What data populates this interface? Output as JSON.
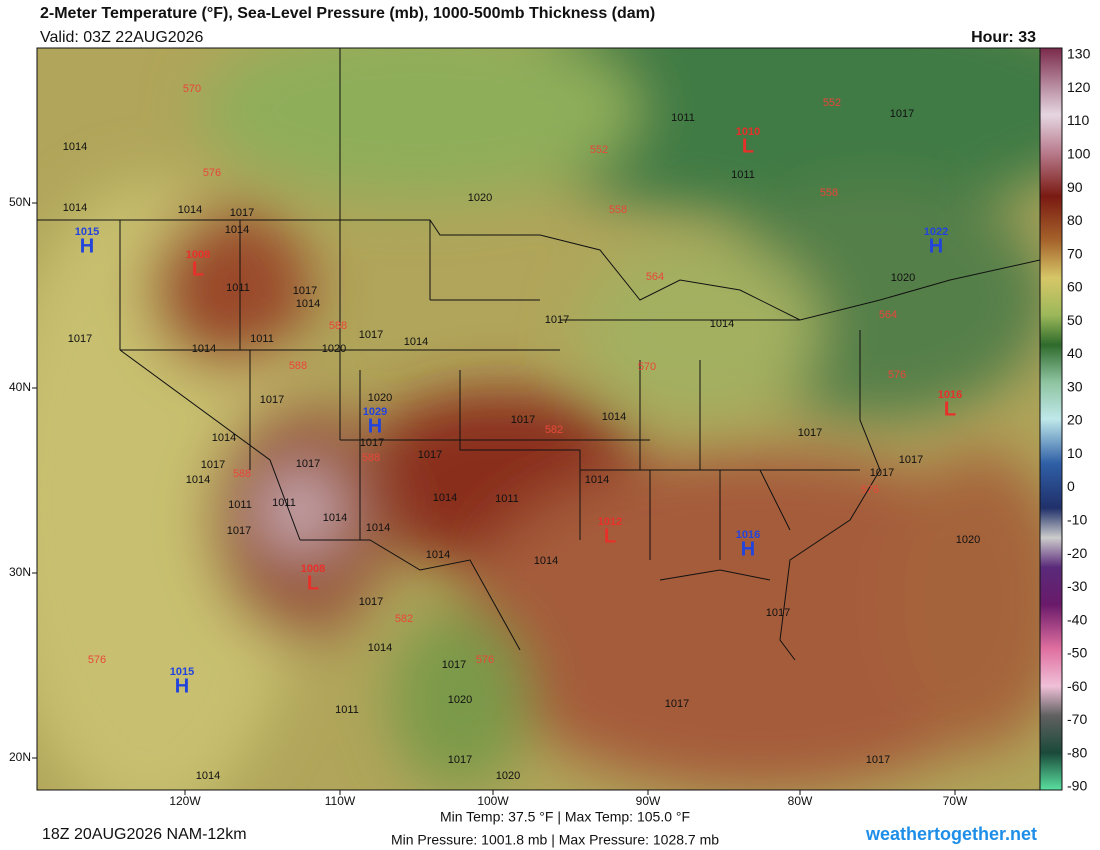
{
  "header": {
    "title": "2-Meter Temperature (°F), Sea-Level Pressure (mb), 1000-500mb Thickness (dam)",
    "valid": "Valid: 03Z 22AUG2026",
    "hour": "Hour: 33"
  },
  "colorbar": {
    "ticks": [
      130,
      120,
      110,
      100,
      90,
      80,
      70,
      60,
      50,
      40,
      30,
      20,
      10,
      0,
      -10,
      -20,
      -30,
      -40,
      -50,
      -60,
      -70,
      -80,
      -90
    ]
  },
  "map": {
    "lat_labels": [
      "50N",
      "40N",
      "30N",
      "20N"
    ],
    "lon_labels": [
      "120W",
      "110W",
      "100W",
      "90W",
      "80W",
      "70W"
    ],
    "centers": [
      {
        "letter": "H",
        "value": "1015"
      },
      {
        "letter": "H",
        "value": "1022"
      },
      {
        "letter": "L",
        "value": "1008"
      },
      {
        "letter": "H",
        "value": "1029"
      },
      {
        "letter": "L",
        "value": "1016"
      },
      {
        "letter": "L",
        "value": "1012"
      },
      {
        "letter": "H",
        "value": "1016"
      },
      {
        "letter": "L",
        "value": "1008"
      },
      {
        "letter": "H",
        "value": "1015"
      },
      {
        "letter": "L",
        "value": "1010"
      }
    ],
    "isobar_labels": [
      "1014",
      "1014",
      "1014",
      "1017",
      "1014",
      "1020",
      "1011",
      "1011",
      "1017",
      "1020",
      "1014",
      "1017",
      "1017",
      "1011",
      "1017",
      "1014",
      "1017",
      "1014",
      "1020",
      "1014",
      "1011",
      "1017",
      "1014",
      "1020",
      "1017",
      "1014",
      "1017",
      "1017",
      "1017",
      "1017",
      "1014",
      "1017",
      "1011",
      "1014",
      "1011",
      "1014",
      "1011",
      "1014",
      "1014",
      "1014",
      "1014",
      "1017",
      "1017",
      "1017",
      "1017",
      "1020",
      "1017",
      "1014",
      "1017",
      "1020",
      "1011",
      "1017",
      "1014",
      "1017",
      "1020",
      "1017"
    ],
    "thickness_labels": [
      "570",
      "576",
      "552",
      "552",
      "558",
      "558",
      "564",
      "564",
      "570",
      "576",
      "582",
      "588",
      "588",
      "588",
      "588",
      "582",
      "576",
      "576",
      "576"
    ]
  },
  "footer": {
    "run": "18Z 20AUG2026 NAM-12km",
    "temps": "Min Temp:  37.5 °F | Max Temp: 105.0 °F",
    "pressures": "Min Pressure: 1001.8 mb | Max Pressure: 1028.7 mb",
    "site": "weathertogether.net"
  }
}
